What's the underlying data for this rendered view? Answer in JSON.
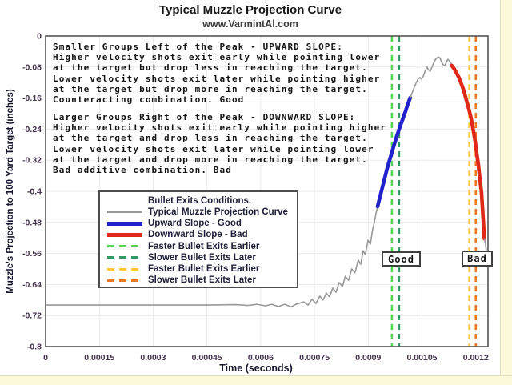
{
  "page": {
    "title": "Typical Muzzle Projection Curve",
    "subtitle": "www.VarmintAl.com"
  },
  "annotations": {
    "upward": "Smaller Groups Left of the Peak - UPWARD SLOPE:\nHigher velocity shots exit early while pointing lower\nat the target but drop less in reaching the target.\nLower velocity shots exit later while pointing higher\nat the target but drop more in reaching the target.\nCounteracting combination. Good",
    "downward": "Larger Groups Right of the Peak - DOWNWARD SLOPE:\nHigher velocity shots exit early while pointing higher\nat the target and drop less in reaching the target.\nLower velocity shots exit later while pointing lower\nat the target and drop more in reaching the target.\nBad additive combination. Bad"
  },
  "labels": {
    "good": "Good",
    "bad": "Bad"
  },
  "colors": {
    "curve_gray": "#999999",
    "upward_blue": "#2222cc",
    "downward_red": "#e02818",
    "faster_good_green": "#55d455",
    "slower_good_green": "#339966",
    "faster_bad_yellow": "#ffc83c",
    "slower_bad_orange": "#ee7722",
    "grid": "#eaeaea",
    "plot_border": "#555555",
    "page_margin": "#fcf9d9"
  },
  "chart_data": {
    "type": "line",
    "title": "Typical Muzzle Projection Curve",
    "subtitle": "www.VarmintAl.com",
    "xlabel": "Time (seconds)",
    "ylabel": "Muzzle's Projection to 100 Yard Target (inches)",
    "xlim": [
      0,
      0.001234
    ],
    "ylim": [
      -0.8,
      0
    ],
    "xticks": [
      0,
      0.00015,
      0.0003,
      0.00045,
      0.0006,
      0.00075,
      0.0009,
      0.00105,
      0.0012
    ],
    "xtick_labels": [
      "0",
      "0.00015",
      "0.0003",
      "0.00045",
      "0.0006",
      "0.00075",
      "0.0009",
      "0.00105",
      "0.0012"
    ],
    "yticks": [
      0,
      -0.08,
      -0.16,
      -0.24,
      -0.32,
      -0.4,
      -0.48,
      -0.56,
      -0.64,
      -0.72,
      -0.8
    ],
    "ytick_labels": [
      "0",
      "-0.08",
      "-0.16",
      "-0.24",
      "-0.32",
      "-0.4",
      "-0.48",
      "-0.56",
      "-0.64",
      "-0.72",
      "-0.8"
    ],
    "grid": true,
    "legend": {
      "title": "Bullet Exits Conditions.",
      "position": "center-left",
      "items": [
        {
          "label": "Typical Muzzle Projection Curve",
          "color": "#999999",
          "style": "solid",
          "weight": 2
        },
        {
          "label": "Upward Slope - Good",
          "color": "#2222cc",
          "style": "solid",
          "weight": 5
        },
        {
          "label": "Downward Slope - Bad",
          "color": "#e02818",
          "style": "solid",
          "weight": 5
        },
        {
          "label": "Faster Bullet Exits Earlier",
          "color": "#55d455",
          "style": "dashed",
          "weight": 3
        },
        {
          "label": "Slower Bullet Exits Later",
          "color": "#339966",
          "style": "dashed",
          "weight": 3
        },
        {
          "label": "Faster Bullet Exits Earlier",
          "color": "#ffc83c",
          "style": "dashed",
          "weight": 3
        },
        {
          "label": "Slower Bullet Exits Later",
          "color": "#ee7722",
          "style": "dashed",
          "weight": 3
        }
      ]
    },
    "vlines": [
      {
        "name": "faster-bullet-exits-earlier-good",
        "t": 0.000966,
        "color": "#55d455"
      },
      {
        "name": "slower-bullet-exits-later-good",
        "t": 0.000986,
        "color": "#339966"
      },
      {
        "name": "faster-bullet-exits-earlier-bad",
        "t": 0.001182,
        "color": "#ffc83c"
      },
      {
        "name": "slower-bullet-exits-later-bad",
        "t": 0.0012,
        "color": "#ee7722"
      }
    ],
    "series": [
      {
        "name": "muzzle-curve-baseline-and-rise",
        "color": "#999999",
        "width": 1.6,
        "points": [
          [
            0,
            -0.693
          ],
          [
            0.00025,
            -0.693
          ],
          [
            0.00045,
            -0.693
          ],
          [
            0.00053,
            -0.692
          ],
          [
            0.000565,
            -0.694
          ],
          [
            0.00059,
            -0.691
          ],
          [
            0.000613,
            -0.695
          ],
          [
            0.000631,
            -0.691
          ],
          [
            0.000649,
            -0.697
          ],
          [
            0.000667,
            -0.691
          ],
          [
            0.000685,
            -0.698
          ],
          [
            0.000698,
            -0.691
          ],
          [
            0.00072,
            -0.685
          ],
          [
            0.000732,
            -0.693
          ],
          [
            0.000743,
            -0.678
          ],
          [
            0.000754,
            -0.689
          ],
          [
            0.000765,
            -0.67
          ],
          [
            0.000774,
            -0.68
          ],
          [
            0.000783,
            -0.662
          ],
          [
            0.000792,
            -0.672
          ],
          [
            0.000801,
            -0.649
          ],
          [
            0.00081,
            -0.66
          ],
          [
            0.000819,
            -0.635
          ],
          [
            0.000828,
            -0.645
          ],
          [
            0.000836,
            -0.619
          ],
          [
            0.000845,
            -0.629
          ],
          [
            0.000854,
            -0.6
          ],
          [
            0.000863,
            -0.61
          ],
          [
            0.000872,
            -0.577
          ],
          [
            0.000879,
            -0.588
          ],
          [
            0.000886,
            -0.553
          ],
          [
            0.000892,
            -0.563
          ],
          [
            0.000899,
            -0.526
          ],
          [
            0.000906,
            -0.536
          ],
          [
            0.000912,
            -0.499
          ],
          [
            0.000917,
            -0.48
          ],
          [
            0.000921,
            -0.46
          ],
          [
            0.000926,
            -0.439
          ]
        ]
      },
      {
        "name": "upward-slope-good",
        "color": "#2222cc",
        "width": 4.6,
        "points": [
          [
            0.000926,
            -0.439
          ],
          [
            0.000935,
            -0.406
          ],
          [
            0.000943,
            -0.377
          ],
          [
            0.000952,
            -0.344
          ],
          [
            0.000957,
            -0.327
          ],
          [
            0.000961,
            -0.315
          ],
          [
            0.00097,
            -0.287
          ],
          [
            0.000979,
            -0.26
          ],
          [
            0.000988,
            -0.235
          ],
          [
            0.000997,
            -0.212
          ],
          [
            0.001004,
            -0.194
          ],
          [
            0.00101,
            -0.177
          ],
          [
            0.001017,
            -0.159
          ]
        ]
      },
      {
        "name": "muzzle-curve-peak",
        "color": "#999999",
        "width": 1.6,
        "points": [
          [
            0.001017,
            -0.159
          ],
          [
            0.001026,
            -0.138
          ],
          [
            0.001033,
            -0.122
          ],
          [
            0.001039,
            -0.111
          ],
          [
            0.001044,
            -0.107
          ],
          [
            0.001048,
            -0.111
          ],
          [
            0.001053,
            -0.105
          ],
          [
            0.001059,
            -0.089
          ],
          [
            0.001064,
            -0.08
          ],
          [
            0.001068,
            -0.087
          ],
          [
            0.001073,
            -0.091
          ],
          [
            0.001077,
            -0.082
          ],
          [
            0.001082,
            -0.07
          ],
          [
            0.001088,
            -0.06
          ],
          [
            0.001095,
            -0.054
          ],
          [
            0.0011,
            -0.056
          ],
          [
            0.001104,
            -0.066
          ],
          [
            0.001109,
            -0.074
          ],
          [
            0.001113,
            -0.076
          ],
          [
            0.001118,
            -0.068
          ],
          [
            0.001122,
            -0.06
          ],
          [
            0.001126,
            -0.064
          ],
          [
            0.001131,
            -0.07
          ],
          [
            0.001133,
            -0.076
          ]
        ]
      },
      {
        "name": "downward-slope-bad",
        "color": "#e02818",
        "width": 4.6,
        "points": [
          [
            0.001133,
            -0.076
          ],
          [
            0.00114,
            -0.085
          ],
          [
            0.001146,
            -0.095
          ],
          [
            0.001153,
            -0.107
          ],
          [
            0.00116,
            -0.124
          ],
          [
            0.001167,
            -0.142
          ],
          [
            0.001173,
            -0.163
          ],
          [
            0.00118,
            -0.186
          ],
          [
            0.001187,
            -0.212
          ],
          [
            0.001193,
            -0.243
          ],
          [
            0.001198,
            -0.27
          ],
          [
            0.001202,
            -0.299
          ],
          [
            0.001207,
            -0.33
          ],
          [
            0.001211,
            -0.365
          ],
          [
            0.001216,
            -0.404
          ],
          [
            0.001218,
            -0.433
          ],
          [
            0.00122,
            -0.462
          ],
          [
            0.001222,
            -0.493
          ],
          [
            0.001224,
            -0.522
          ]
        ]
      },
      {
        "name": "muzzle-curve-tail",
        "color": "#999999",
        "width": 1.6,
        "points": [
          [
            0.001224,
            -0.522
          ],
          [
            0.001227,
            -0.536
          ],
          [
            0.001229,
            -0.551
          ]
        ]
      }
    ]
  }
}
